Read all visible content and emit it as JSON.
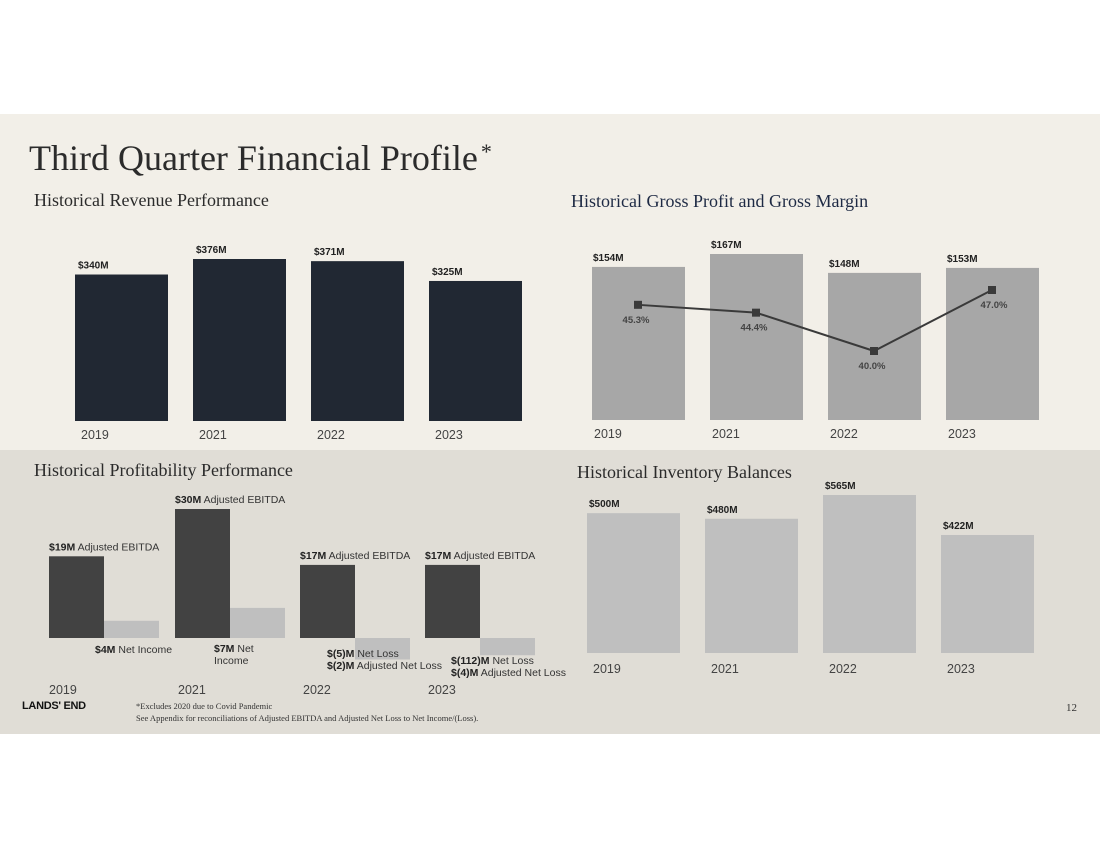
{
  "slide": {
    "title": "Third Quarter Financial Profile",
    "title_mark": "*",
    "page_number": "12",
    "logo_text": "LANDS' END",
    "footnote_1": "*Excludes 2020 due to Covid Pandemic",
    "footnote_2": "See Appendix for reconciliations of Adjusted EBITDA and Adjusted Net Loss to Net Income/(Loss).",
    "colors": {
      "band_top": "#f2efe8",
      "band_bottom": "#e0ddd6",
      "navy": "#212833",
      "gray_bar": "#a7a7a7",
      "dark_bar": "#424242",
      "light_bar": "#bfbfbf"
    }
  },
  "chart_data": [
    {
      "type": "bar",
      "title": "Historical Revenue Performance",
      "categories": [
        "2019",
        "2021",
        "2022",
        "2023"
      ],
      "values": [
        340,
        376,
        371,
        325
      ],
      "labels": [
        "$340M",
        "$376M",
        "$371M",
        "$325M"
      ],
      "unit": "$M",
      "ylim": [
        0,
        400
      ]
    },
    {
      "type": "bar",
      "title": "Historical Gross Profit and Gross Margin",
      "categories": [
        "2019",
        "2021",
        "2022",
        "2023"
      ],
      "series": [
        {
          "type": "bar",
          "values": [
            154,
            167,
            148,
            153
          ],
          "labels": [
            "$154M",
            "$167M",
            "$148M",
            "$153M"
          ]
        },
        {
          "type": "line",
          "values": [
            45.3,
            44.4,
            40.0,
            47.0
          ],
          "labels": [
            "45.3%",
            "44.4%",
            "40.0%",
            "47.0%"
          ]
        }
      ],
      "ylim": [
        0,
        190
      ]
    },
    {
      "type": "bar",
      "title": "Historical Profitability Performance",
      "categories": [
        "2019",
        "2021",
        "2022",
        "2023"
      ],
      "series": [
        {
          "values": [
            19,
            30,
            17,
            17
          ],
          "labels": [
            {
              "bold": "$19M",
              "text": "Adjusted EBITDA"
            },
            {
              "bold": "$30M",
              "text": "Adjusted EBITDA"
            },
            {
              "bold": "$17M",
              "text": "Adjusted EBITDA"
            },
            {
              "bold": "$17M",
              "text": "Adjusted EBITDA"
            }
          ]
        },
        {
          "values": [
            4,
            7,
            -5,
            -4
          ],
          "labels": [
            {
              "lines": [
                {
                  "bold": "$4M",
                  "text": "Net Income"
                }
              ]
            },
            {
              "lines": [
                {
                  "bold": "$7M",
                  "text": "Net"
                },
                {
                  "bold": "",
                  "text": "Income"
                }
              ]
            },
            {
              "lines": [
                {
                  "bold": "$(5)M",
                  "text": "Net Loss"
                },
                {
                  "bold": "$(2)M",
                  "text": "Adjusted Net Loss"
                }
              ]
            },
            {
              "lines": [
                {
                  "bold": "$(112)M",
                  "text": "Net Loss"
                },
                {
                  "bold": "$(4)M",
                  "text": "Adjusted Net Loss"
                }
              ]
            }
          ]
        }
      ],
      "ylim": [
        -10,
        33
      ]
    },
    {
      "type": "bar",
      "title": "Historical Inventory Balances",
      "categories": [
        "2019",
        "2021",
        "2022",
        "2023"
      ],
      "values": [
        500,
        480,
        565,
        422
      ],
      "labels": [
        "$500M",
        "$480M",
        "$565M",
        "$422M"
      ],
      "unit": "$M",
      "ylim": [
        0,
        600
      ]
    }
  ]
}
